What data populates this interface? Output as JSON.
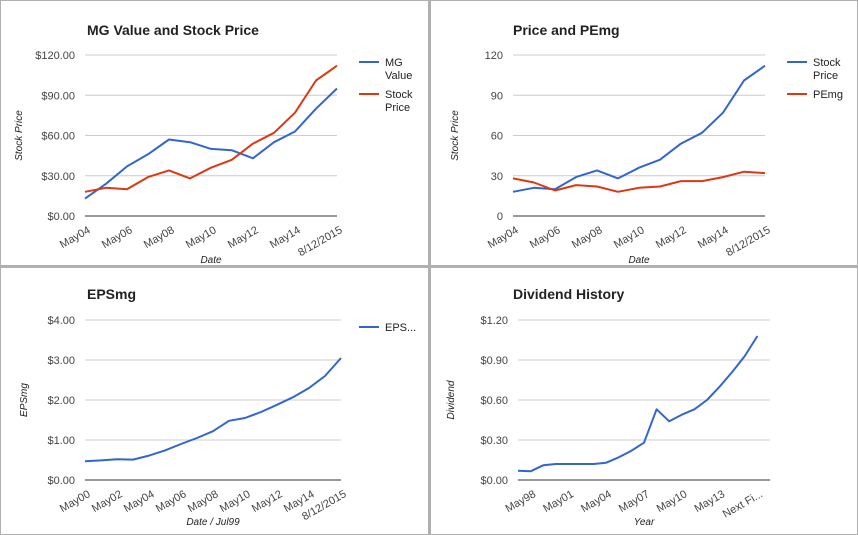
{
  "colors": {
    "blue": "#3366cc",
    "red": "#dc3912",
    "grid": "#cccccc",
    "axis": "#333333"
  },
  "chart_data": [
    {
      "type": "line",
      "title": "MG Value and Stock Price",
      "xlabel": "Date",
      "ylabel": "Stock Price",
      "ylim": [
        0,
        120
      ],
      "yticks": [
        0,
        30,
        60,
        90,
        120
      ],
      "ytick_labels": [
        "$0.00",
        "$30.00",
        "$60.00",
        "$90.00",
        "$120.00"
      ],
      "x_tick_labels": [
        "May04",
        "May06",
        "May08",
        "May10",
        "May12",
        "May14",
        "8/12/2015"
      ],
      "x_tick_positions": [
        0,
        2,
        4,
        6,
        8,
        10,
        12
      ],
      "xlim": [
        0,
        12
      ],
      "grid": true,
      "legend_position": "right",
      "series": [
        {
          "name": "MG Value",
          "color": "#3366cc",
          "legend_lines": [
            "MG",
            "Value"
          ],
          "x": [
            0,
            1,
            2,
            3,
            4,
            5,
            6,
            7,
            8,
            9,
            10,
            11,
            12
          ],
          "values": [
            13,
            24,
            37,
            46,
            57,
            55,
            50,
            49,
            43,
            55,
            63,
            80,
            95
          ]
        },
        {
          "name": "Stock Price",
          "color": "#dc3912",
          "legend_lines": [
            "Stock",
            "Price"
          ],
          "x": [
            0,
            1,
            2,
            3,
            4,
            5,
            6,
            7,
            8,
            9,
            10,
            11,
            12
          ],
          "values": [
            18,
            21,
            20,
            29,
            34,
            28,
            36,
            42,
            54,
            62,
            77,
            101,
            112
          ]
        }
      ]
    },
    {
      "type": "line",
      "title": "Price and PEmg",
      "xlabel": "Date",
      "ylabel": "Stock Price",
      "ylim": [
        0,
        120
      ],
      "yticks": [
        0,
        30,
        60,
        90,
        120
      ],
      "ytick_labels": [
        "0",
        "30",
        "60",
        "90",
        "120"
      ],
      "x_tick_labels": [
        "May04",
        "May06",
        "May08",
        "May10",
        "May12",
        "May14",
        "8/12/2015"
      ],
      "x_tick_positions": [
        0,
        2,
        4,
        6,
        8,
        10,
        12
      ],
      "xlim": [
        0,
        12
      ],
      "grid": true,
      "legend_position": "right",
      "series": [
        {
          "name": "Stock Price",
          "color": "#3366cc",
          "legend_lines": [
            "Stock",
            "Price"
          ],
          "x": [
            0,
            1,
            2,
            3,
            4,
            5,
            6,
            7,
            8,
            9,
            10,
            11,
            12
          ],
          "values": [
            18,
            21,
            20,
            29,
            34,
            28,
            36,
            42,
            54,
            62,
            77,
            101,
            112
          ]
        },
        {
          "name": "PEmg",
          "color": "#dc3912",
          "legend_lines": [
            "PEmg"
          ],
          "x": [
            0,
            1,
            2,
            3,
            4,
            5,
            6,
            7,
            8,
            9,
            10,
            11,
            12
          ],
          "values": [
            28,
            25,
            19,
            23,
            22,
            18,
            21,
            22,
            26,
            26,
            29,
            33,
            32
          ]
        }
      ]
    },
    {
      "type": "line",
      "title": "EPSmg",
      "xlabel": "Date / Jul99",
      "ylabel": "EPSmg",
      "ylim": [
        0,
        4
      ],
      "yticks": [
        0,
        1,
        2,
        3,
        4
      ],
      "ytick_labels": [
        "$0.00",
        "$1.00",
        "$2.00",
        "$3.00",
        "$4.00"
      ],
      "x_tick_labels": [
        "May00",
        "May02",
        "May04",
        "May06",
        "May08",
        "May10",
        "May12",
        "May14",
        "8/12/2015"
      ],
      "x_tick_positions": [
        0,
        2,
        4,
        6,
        8,
        10,
        12,
        14,
        16
      ],
      "xlim": [
        0,
        16
      ],
      "grid": true,
      "legend_position": "right",
      "series": [
        {
          "name": "EPS...",
          "color": "#3366cc",
          "legend_lines": [
            "EPS..."
          ],
          "x": [
            0,
            1,
            2,
            3,
            4,
            5,
            6,
            7,
            8,
            9,
            10,
            11,
            12,
            13,
            14,
            15,
            16
          ],
          "values": [
            0.47,
            0.49,
            0.52,
            0.51,
            0.61,
            0.74,
            0.9,
            1.05,
            1.22,
            1.48,
            1.55,
            1.7,
            1.88,
            2.07,
            2.3,
            2.6,
            3.05
          ]
        }
      ]
    },
    {
      "type": "line",
      "title": "Dividend History",
      "xlabel": "Year",
      "ylabel": "Dividend",
      "ylim": [
        0,
        1.2
      ],
      "yticks": [
        0,
        0.3,
        0.6,
        0.9,
        1.2
      ],
      "ytick_labels": [
        "$0.00",
        "$0.30",
        "$0.60",
        "$0.90",
        "$1.20"
      ],
      "x_tick_labels": [
        "May98",
        "May01",
        "May04",
        "May07",
        "May10",
        "May13",
        "Next Fi..."
      ],
      "x_tick_positions": [
        0,
        3,
        6,
        9,
        12,
        15,
        18
      ],
      "xlim": [
        -1,
        19
      ],
      "grid": true,
      "legend_position": "none",
      "series": [
        {
          "name": "",
          "color": "#3366cc",
          "legend_lines": [],
          "x": [
            -1,
            0,
            1,
            2,
            3,
            4,
            5,
            6,
            7,
            8,
            9,
            10,
            11,
            12,
            13,
            14,
            15,
            16,
            17,
            18
          ],
          "values": [
            0.07,
            0.065,
            0.11,
            0.12,
            0.12,
            0.12,
            0.12,
            0.13,
            0.17,
            0.22,
            0.28,
            0.53,
            0.44,
            0.49,
            0.53,
            0.6,
            0.7,
            0.81,
            0.93,
            1.08
          ]
        }
      ]
    }
  ]
}
